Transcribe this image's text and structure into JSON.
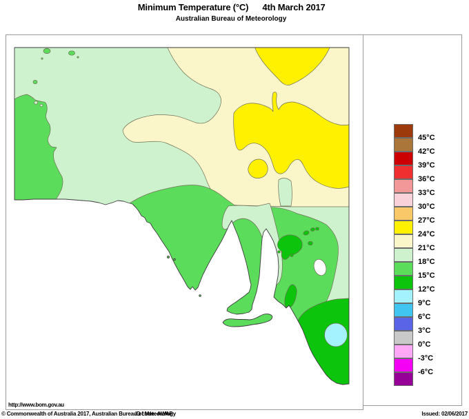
{
  "title": {
    "main": "Minimum Temperature (°C)",
    "date": "4th March 2017",
    "subtitle": "Australian Bureau of Meteorology"
  },
  "map_box": {
    "url_watermark": "http://www.bom.gov.au"
  },
  "legend": {
    "boundary_labels": [
      "45°C",
      "42°C",
      "39°C",
      "36°C",
      "33°C",
      "30°C",
      "27°C",
      "24°C",
      "21°C",
      "18°C",
      "15°C",
      "12°C",
      "9°C",
      "6°C",
      "3°C",
      "0°C",
      "-3°C",
      "-6°C"
    ],
    "cell_colors": [
      "#9C3A0C",
      "#AA7639",
      "#CC0000",
      "#F03030",
      "#F39898",
      "#F8D2D8",
      "#F9C869",
      "#FFF100",
      "#FAF6C9",
      "#CEF2CE",
      "#5BDD5B",
      "#0BC40B",
      "#A5F2FF",
      "#3FC5F0",
      "#5A64E6",
      "#C9C9C9",
      "#FFA8F8",
      "#F400F4",
      "#970097"
    ]
  },
  "map": {
    "region": "South Australia",
    "contour_color": "#6e6e55",
    "coast_color": "#3c3c3c",
    "sea_color": "#ffffff",
    "visible_bands": [
      {
        "range": "24-27°C",
        "color": "#FFF100",
        "areas": "north-east interior"
      },
      {
        "range": "21-24°C",
        "color": "#FAF6C9",
        "areas": "northern interior band"
      },
      {
        "range": "18-21°C",
        "color": "#CEF2CE",
        "areas": "north-west and central band"
      },
      {
        "range": "15-18°C",
        "color": "#5BDD5B",
        "areas": "southern coast, Eyre and Yorke Peninsulas, Kangaroo Island, far west"
      },
      {
        "range": "12-15°C",
        "color": "#0BC40B",
        "areas": "ranges spots and lower south-east corner"
      },
      {
        "range": "9-12°C",
        "color": "#A5F2FF",
        "areas": "small spot in lower south-east"
      }
    ]
  },
  "footer": {
    "copyright": "© Commonwealth of Australia 2017, Australian Bureau of Meteorology",
    "id_code": "ID code: AWAP",
    "issued": "Issued: 02/06/2017"
  }
}
